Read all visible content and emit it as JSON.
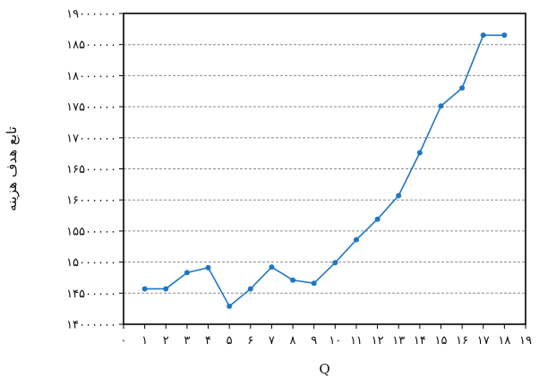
{
  "chart_data": {
    "type": "line",
    "title": "",
    "xlabel": "Q",
    "ylabel": "تابع هدف هزینه",
    "xlim": [
      0,
      19
    ],
    "ylim": [
      14000000,
      19000000
    ],
    "x_ticks": [
      0,
      1,
      2,
      3,
      4,
      5,
      6,
      7,
      8,
      9,
      10,
      11,
      12,
      13,
      14,
      15,
      16,
      17,
      18,
      19
    ],
    "x_tick_labels": [
      "۰",
      "۱",
      "۲",
      "۳",
      "۴",
      "۵",
      "۶",
      "۷",
      "۸",
      "۹",
      "۱۰",
      "۱۱",
      "۱۲",
      "۱۳",
      "۱۴",
      "۱۵",
      "۱۶",
      "۱۷",
      "۱۸",
      "۱۹"
    ],
    "y_ticks": [
      14000000,
      14500000,
      15000000,
      15500000,
      16000000,
      16500000,
      17000000,
      17500000,
      18000000,
      18500000,
      19000000
    ],
    "y_tick_labels": [
      "۱۴۰۰۰۰۰۰",
      "۱۴۵۰۰۰۰۰",
      "۱۵۰۰۰۰۰۰",
      "۱۵۵۰۰۰۰۰",
      "۱۶۰۰۰۰۰۰",
      "۱۶۵۰۰۰۰۰",
      "۱۷۰۰۰۰۰۰",
      "۱۷۵۰۰۰۰۰",
      "۱۸۰۰۰۰۰۰",
      "۱۸۵۰۰۰۰۰",
      "۱۹۰۰۰۰۰۰"
    ],
    "grid": "horizontal-dashed",
    "legend": "none",
    "series": [
      {
        "color": "#1f77c4",
        "x": [
          1,
          2,
          3,
          4,
          5,
          6,
          7,
          8,
          9,
          10,
          11,
          12,
          13,
          14,
          15,
          16,
          17,
          18
        ],
        "y": [
          14570000,
          14570000,
          14830000,
          14910000,
          14290000,
          14570000,
          14920000,
          14710000,
          14660000,
          14990000,
          15360000,
          15690000,
          16070000,
          16760000,
          17510000,
          17800000,
          18650000,
          18650000
        ]
      }
    ]
  }
}
